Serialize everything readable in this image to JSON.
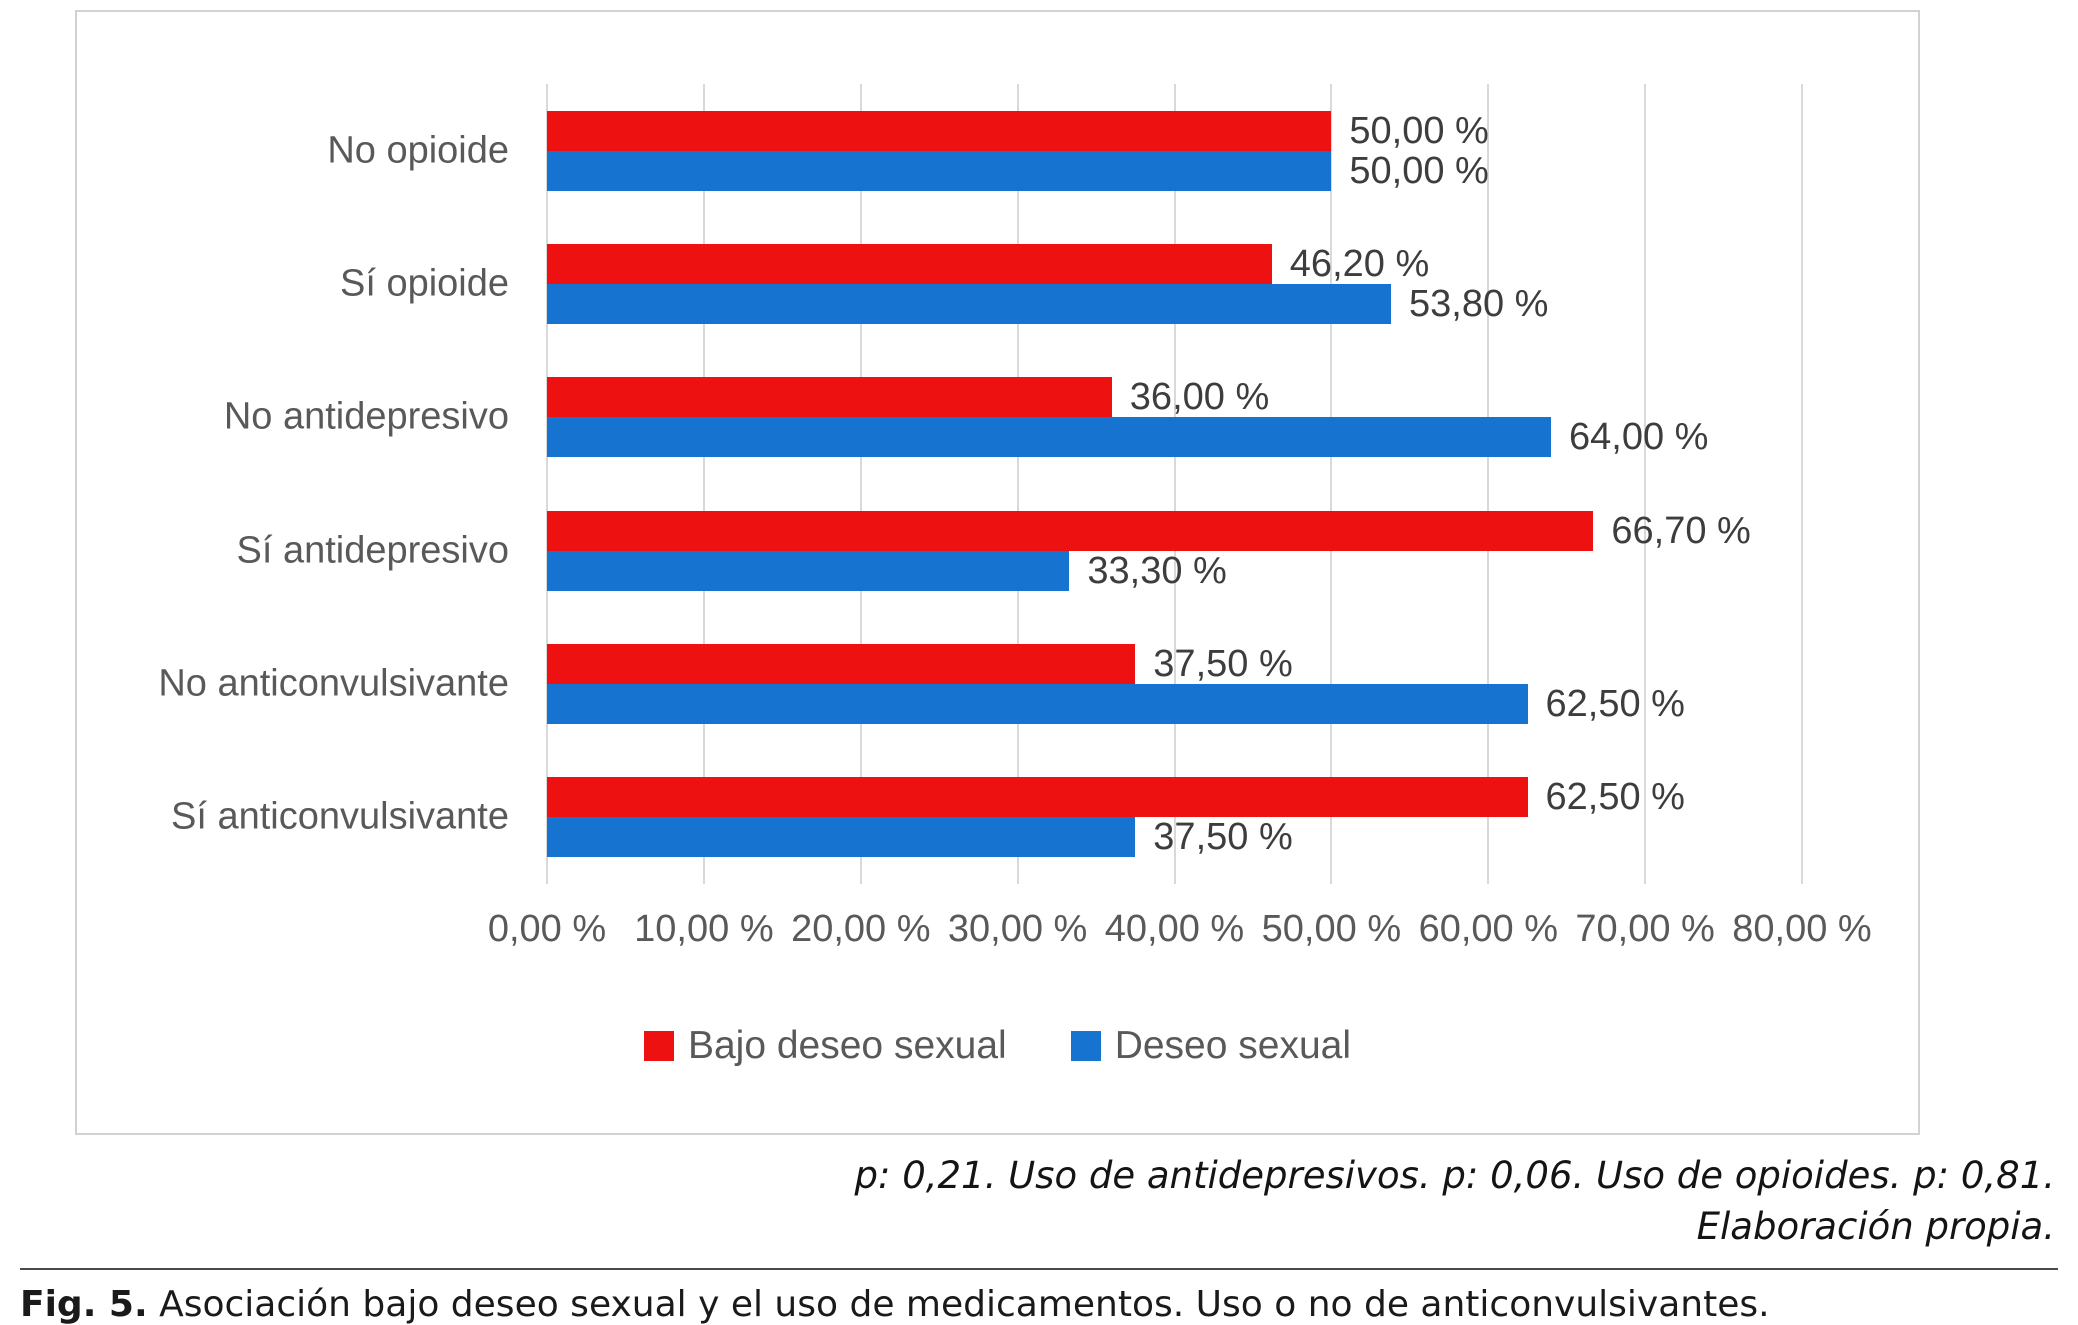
{
  "chart_data": {
    "type": "bar",
    "orientation": "horizontal",
    "title": "",
    "xlabel": "",
    "ylabel": "",
    "xlim": [
      0,
      80
    ],
    "grid": true,
    "legend_position": "bottom",
    "categories": [
      "No opioide",
      "Sí opioide",
      "No antidepresivo",
      "Sí antidepresivo",
      "No anticonvulsivante",
      "Sí anticonvulsivante"
    ],
    "series": [
      {
        "name": "Bajo deseo sexual",
        "color": "#ee1111",
        "values": [
          50.0,
          46.2,
          36.0,
          66.7,
          37.5,
          62.5
        ],
        "labels": [
          "50,00 %",
          "46,20 %",
          "36,00 %",
          "66,70 %",
          "37,50 %",
          "62,50 %"
        ]
      },
      {
        "name": "Deseo sexual",
        "color": "#1673cf",
        "values": [
          50.0,
          53.8,
          64.0,
          33.3,
          62.5,
          37.5
        ],
        "labels": [
          "50,00 %",
          "53,80 %",
          "64,00 %",
          "33,30 %",
          "62,50 %",
          "37,50 %"
        ]
      }
    ],
    "x_ticks": [
      0,
      10,
      20,
      30,
      40,
      50,
      60,
      70,
      80
    ],
    "x_tick_labels": [
      "0,00 %",
      "10,00 %",
      "20,00 %",
      "30,00 %",
      "40,00 %",
      "50,00 %",
      "60,00 %",
      "70,00 %",
      "80,00 %"
    ]
  },
  "colors": {
    "gridline": "#d9d9d9",
    "axis_text": "#595959",
    "data_label_text": "#3d3d3d",
    "chart_border": "#d2d2d2"
  },
  "notes": {
    "line1": "p: 0,21. Uso de antidepresivos. p: 0,06. Uso de opioides. p: 0,81.",
    "line2": "Elaboración propia."
  },
  "figure_caption": {
    "label": "Fig. 5.",
    "text": " Asociación bajo deseo sexual y el uso de medicamentos. Uso o no de anticonvulsivantes."
  }
}
